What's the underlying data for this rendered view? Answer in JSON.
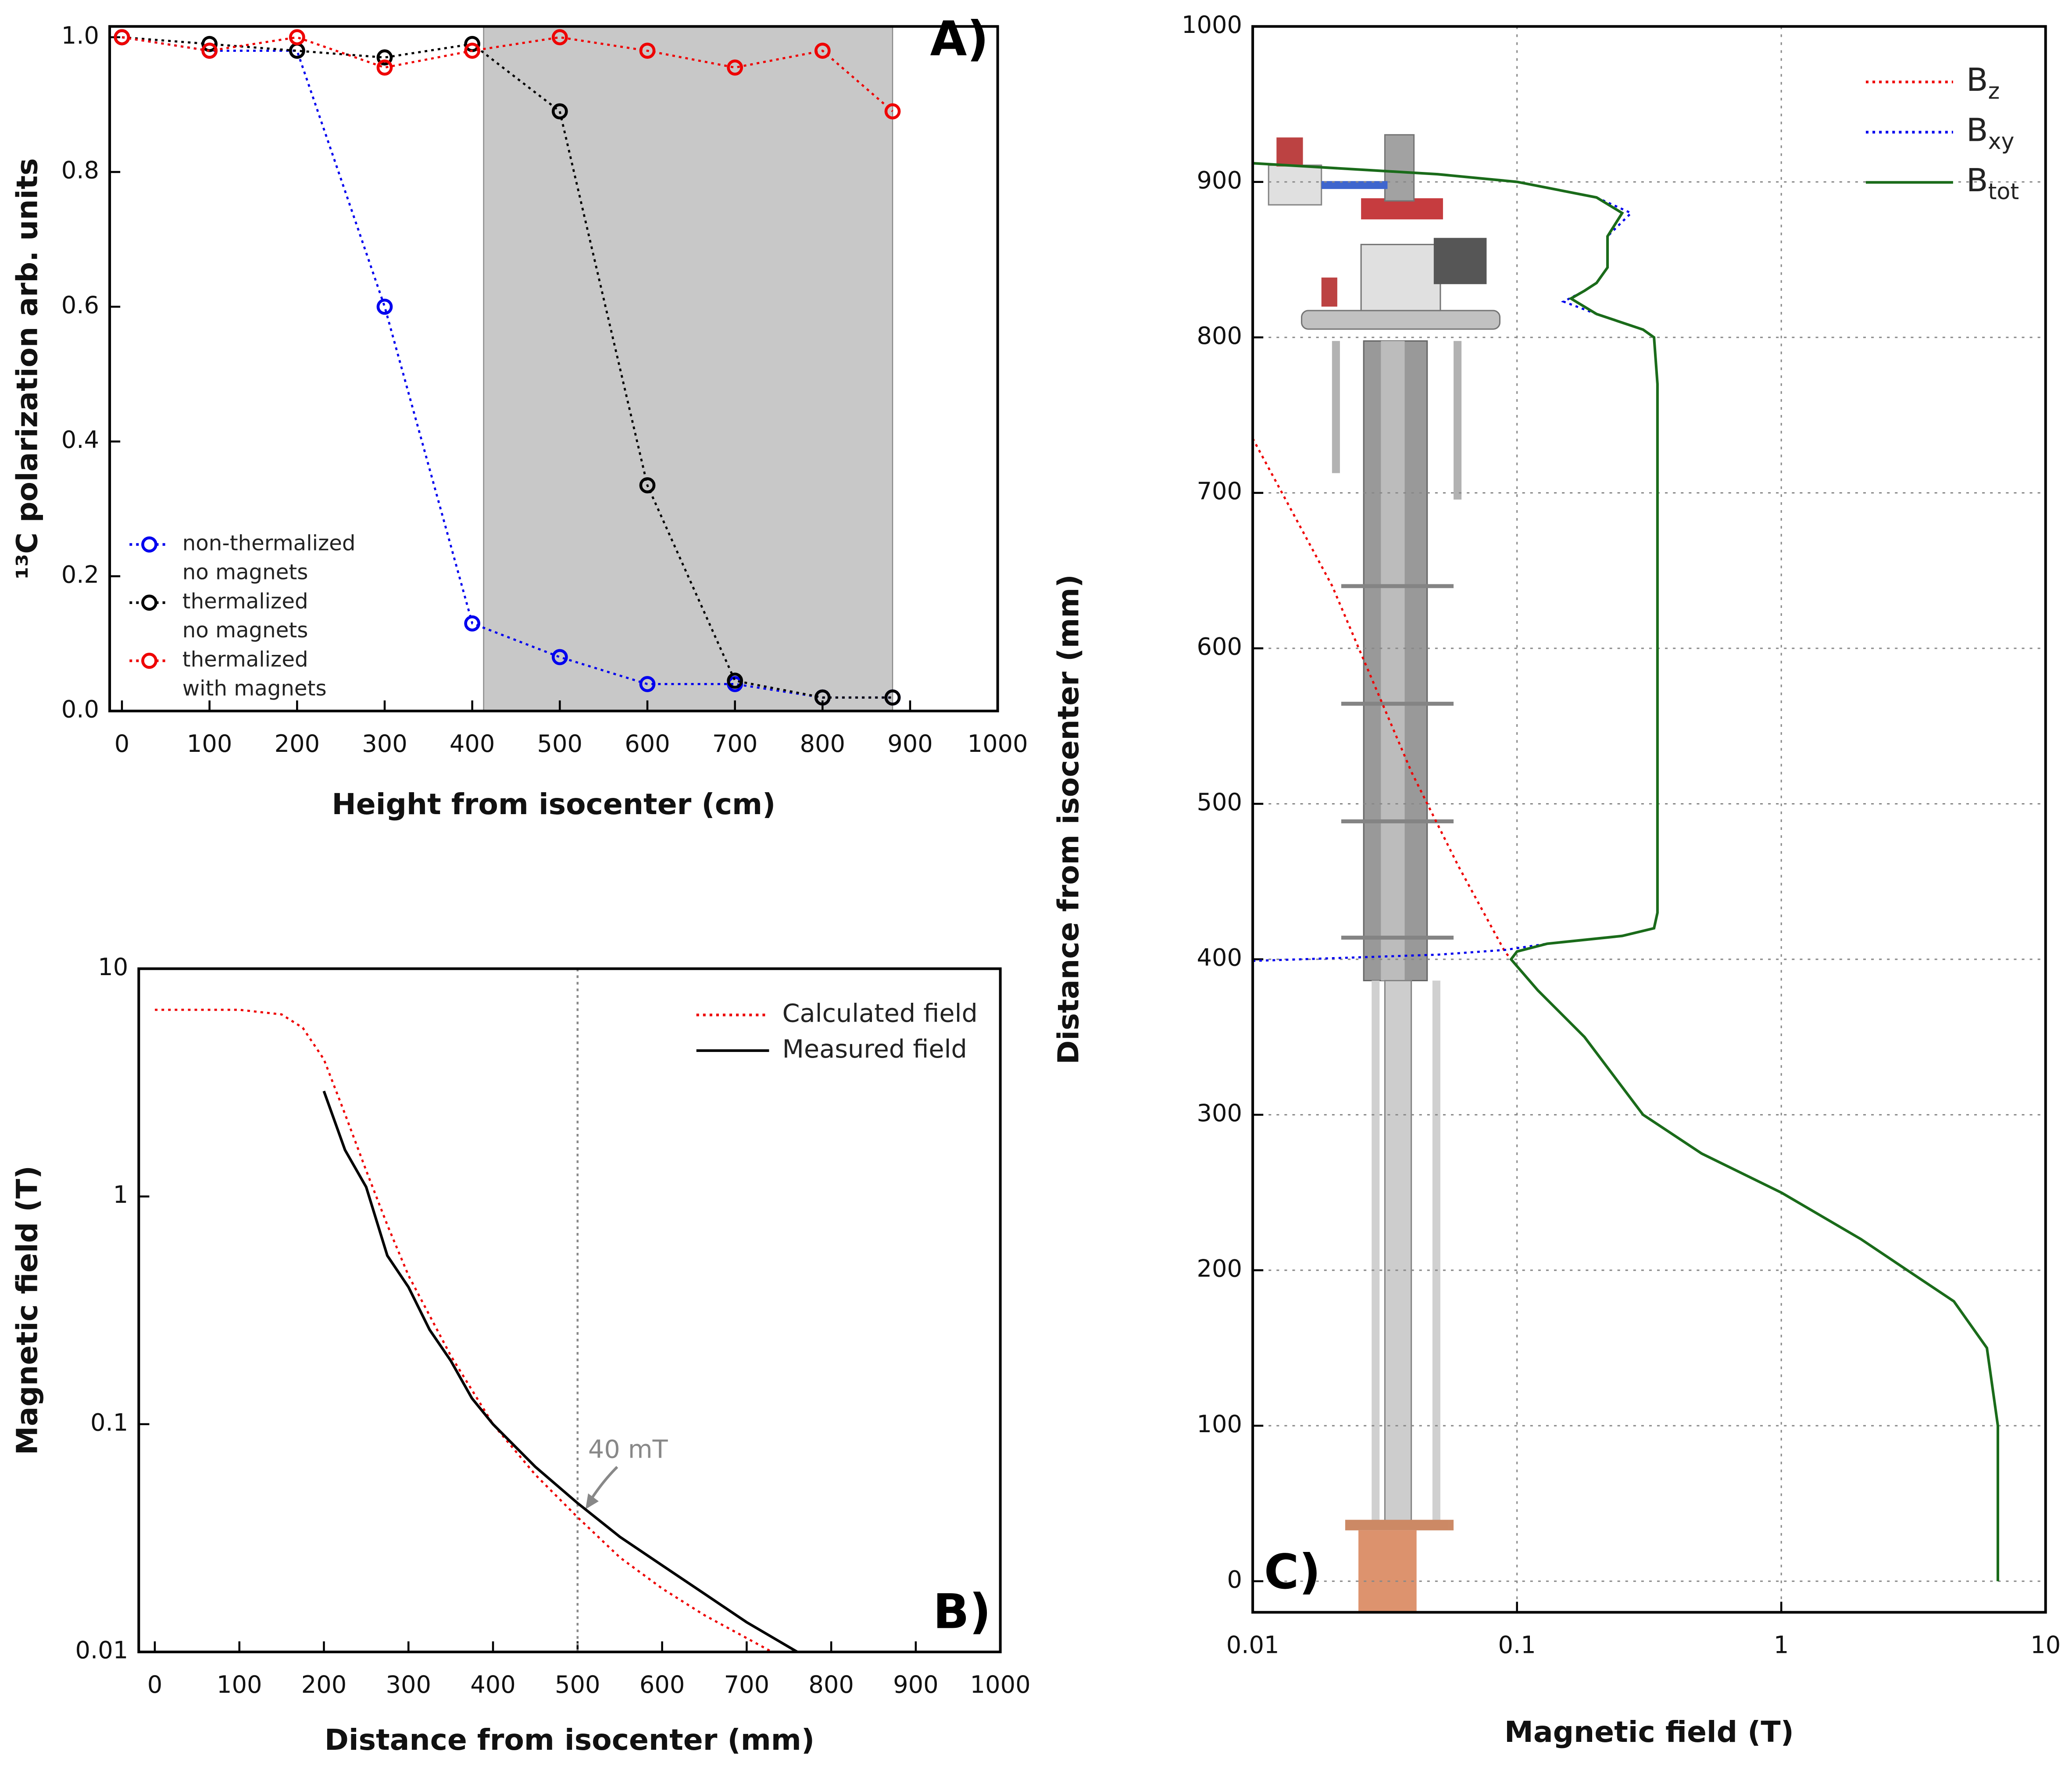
{
  "chart_data": [
    {
      "type": "line",
      "panel_label": "A)",
      "xlabel": "Height from isocenter (cm)",
      "ylabel": "¹³C polarization arb. units",
      "x": [
        0,
        100,
        200,
        300,
        400,
        500,
        600,
        700,
        800,
        880
      ],
      "xlim": [
        -14,
        1000
      ],
      "xticks": [
        0,
        100,
        200,
        300,
        400,
        500,
        600,
        700,
        800,
        900,
        1000
      ],
      "ylim": [
        0,
        1.016
      ],
      "yticks": [
        {
          "value": 0,
          "label": "0.0"
        },
        0.2,
        0.4,
        0.6,
        0.8,
        {
          "value": 1,
          "label": "1.0"
        }
      ],
      "shaded_xrange": [
        413,
        880
      ],
      "markers": true,
      "legend": "lower left",
      "grid": false,
      "series": [
        {
          "name": "non-thermalized\nno magnets",
          "color": "#0000ee",
          "dash": "dotted",
          "values": [
            1.0,
            0.98,
            0.98,
            0.6,
            0.13,
            0.08,
            0.04,
            0.04,
            0.02,
            0.02
          ]
        },
        {
          "name": "thermalized\nno magnets",
          "color": "#000000",
          "dash": "dotted",
          "values": [
            1.0,
            0.99,
            0.98,
            0.97,
            0.99,
            0.89,
            0.335,
            0.045,
            0.02,
            0.02
          ]
        },
        {
          "name": "thermalized\nwith magnets",
          "color": "#ee0000",
          "dash": "dotted",
          "values": [
            1.0,
            0.98,
            1.0,
            0.955,
            0.98,
            1.0,
            0.98,
            0.955,
            0.98,
            0.89
          ]
        }
      ]
    },
    {
      "type": "line",
      "panel_label": "B)",
      "xlabel": "Distance from isocenter (mm)",
      "ylabel": "Magnetic field (T)",
      "xlim": [
        -19,
        1000
      ],
      "xticks": [
        0,
        100,
        200,
        300,
        400,
        500,
        600,
        700,
        800,
        900,
        1000
      ],
      "ylim": [
        0.01,
        10
      ],
      "yscale": "log",
      "yticks": [
        0.01,
        0.1,
        1,
        10
      ],
      "vline_x": 500,
      "annotation": "40 mT",
      "markers": false,
      "legend": "upper right",
      "grid": false,
      "series": [
        {
          "name": "Calculated field",
          "color": "#ee0000",
          "dash": "dotted",
          "x": [
            0,
            100,
            150,
            175,
            200,
            225,
            250,
            275,
            300,
            350,
            400,
            450,
            500,
            550,
            600,
            650,
            700,
            730
          ],
          "values": [
            6.6,
            6.6,
            6.3,
            5.5,
            4,
            2.3,
            1.3,
            0.75,
            0.45,
            0.2,
            0.1,
            0.06,
            0.039,
            0.026,
            0.019,
            0.0145,
            0.0115,
            0.01
          ]
        },
        {
          "name": "Measured field",
          "color": "#000000",
          "dash": "solid",
          "x": [
            200,
            225,
            250,
            275,
            300,
            325,
            350,
            375,
            400,
            450,
            500,
            550,
            600,
            650,
            700,
            760
          ],
          "values": [
            2.9,
            1.6,
            1.1,
            0.55,
            0.4,
            0.26,
            0.19,
            0.13,
            0.1,
            0.065,
            0.045,
            0.032,
            0.024,
            0.018,
            0.0135,
            0.01
          ]
        }
      ]
    },
    {
      "type": "line",
      "panel_label": "C)",
      "xlabel": "Magnetic field (T)",
      "ylabel": "Distance from isocenter (mm)",
      "xlim": [
        0.01,
        10
      ],
      "xscale": "log",
      "xticks": [
        0.01,
        0.1,
        1,
        10
      ],
      "ylim": [
        -20,
        1000
      ],
      "yticks": [
        0,
        100,
        200,
        300,
        400,
        500,
        600,
        700,
        800,
        900,
        1000
      ],
      "markers": false,
      "legend": "upper right",
      "grid": true,
      "series": [
        {
          "name": "Bz",
          "color": "#ee0000",
          "dash": "dotted",
          "x": [
            0.01,
            0.02,
            0.04,
            0.06,
            0.09,
            0.095
          ],
          "values": [
            735,
            640,
            520,
            460,
            405,
            400
          ]
        },
        {
          "name": "Bxy",
          "color": "#0000ee",
          "dash": "dotted",
          "x": [
            0.01,
            0.05,
            0.09,
            0.13,
            0.25,
            0.33,
            0.34,
            0.34,
            0.33,
            0.3,
            0.2,
            0.15,
            0.18,
            0.2,
            0.22,
            0.22,
            0.27,
            0.2,
            0.1,
            0.05,
            0.01
          ],
          "values": [
            399,
            403,
            406,
            410,
            415,
            420,
            430,
            770,
            800,
            805,
            815,
            823,
            830,
            835,
            845,
            865,
            880,
            890,
            900,
            905,
            912
          ]
        },
        {
          "name": "Btot",
          "color": "#1a6b1a",
          "dash": "solid",
          "x": [
            6.6,
            6.6,
            6.0,
            4.5,
            3,
            2,
            1,
            0.5,
            0.3,
            0.18,
            0.12,
            0.095,
            0.1,
            0.13,
            0.25,
            0.33,
            0.34,
            0.34,
            0.33,
            0.3,
            0.2,
            0.16,
            0.18,
            0.2,
            0.22,
            0.22,
            0.25,
            0.2,
            0.1,
            0.05,
            0.01
          ],
          "values": [
            0,
            100,
            150,
            180,
            200,
            220,
            250,
            275,
            300,
            350,
            380,
            400,
            405,
            410,
            415,
            420,
            430,
            770,
            800,
            805,
            815,
            825,
            830,
            835,
            845,
            865,
            880,
            890,
            900,
            905,
            912
          ]
        }
      ]
    }
  ]
}
